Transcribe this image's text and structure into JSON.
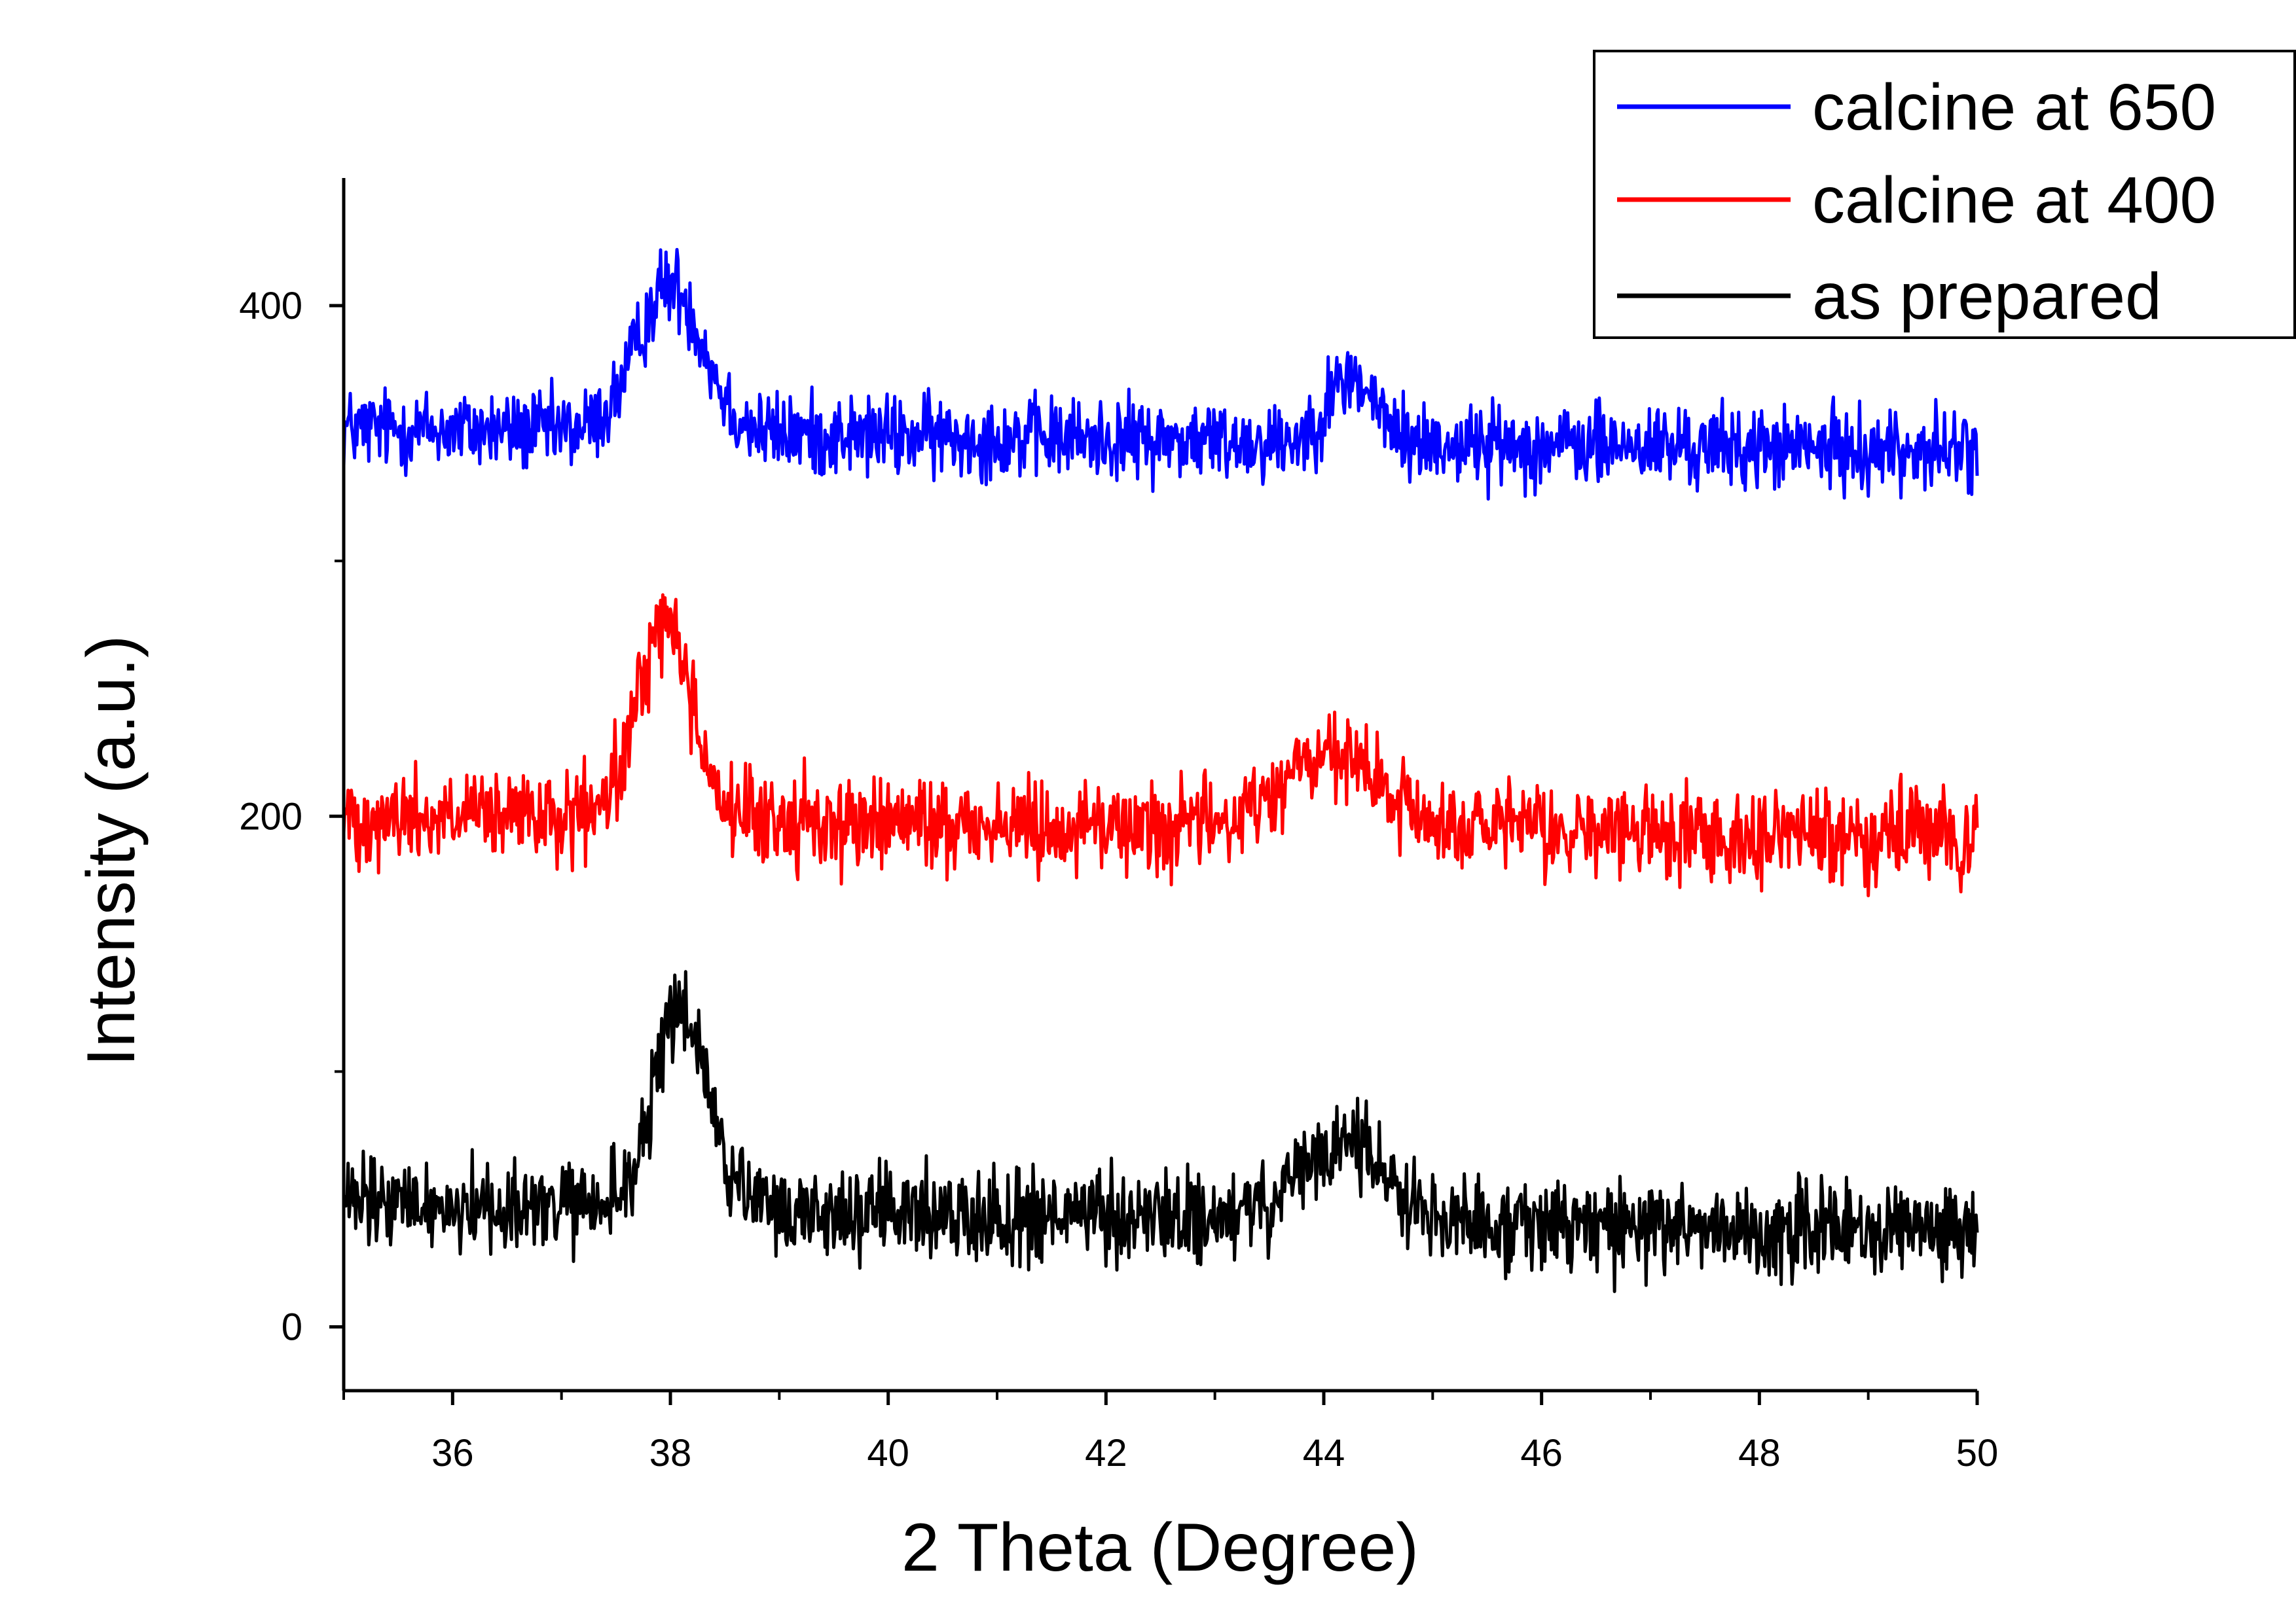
{
  "chart_data": {
    "type": "line",
    "title": "",
    "xlabel": "2 Theta (Degree)",
    "ylabel": "Intensity (a.u.)",
    "xlim": [
      35,
      50
    ],
    "ylim": [
      -25,
      450
    ],
    "x_ticks": [
      36,
      38,
      40,
      42,
      44,
      46,
      48,
      50
    ],
    "x_tick_labels": [
      "36",
      "38",
      "40",
      "42",
      "44",
      "46",
      "48",
      "50"
    ],
    "x_minor_ticks": [
      35,
      37,
      39,
      41,
      43,
      45,
      47,
      49
    ],
    "y_ticks": [
      0,
      200,
      400
    ],
    "y_tick_labels": [
      "0",
      "200",
      "400"
    ],
    "y_minor_ticks": [
      100,
      300
    ],
    "grid": false,
    "legend_position": "top-right",
    "series": [
      {
        "name": "calcine at 650",
        "color": "#0000FF",
        "baseline": 352,
        "baseline_end": 343,
        "noise_amplitude": 8,
        "peaks": [
          {
            "center": 38.0,
            "height": 58,
            "width": 0.3
          },
          {
            "center": 44.25,
            "height": 25,
            "width": 0.22
          }
        ]
      },
      {
        "name": "calcine at 400",
        "color": "#FF0000",
        "baseline": 200,
        "baseline_end": 192,
        "noise_amplitude": 9,
        "peaks": [
          {
            "center": 37.95,
            "height": 78,
            "width": 0.25
          },
          {
            "center": 44.05,
            "height": 28,
            "width": 0.45
          }
        ]
      },
      {
        "name": "as prepared",
        "color": "#000000",
        "baseline": 48,
        "baseline_end": 37,
        "noise_amplitude": 9,
        "peaks": [
          {
            "center": 38.1,
            "height": 78,
            "width": 0.25
          },
          {
            "center": 44.2,
            "height": 30,
            "width": 0.4
          }
        ]
      }
    ]
  }
}
